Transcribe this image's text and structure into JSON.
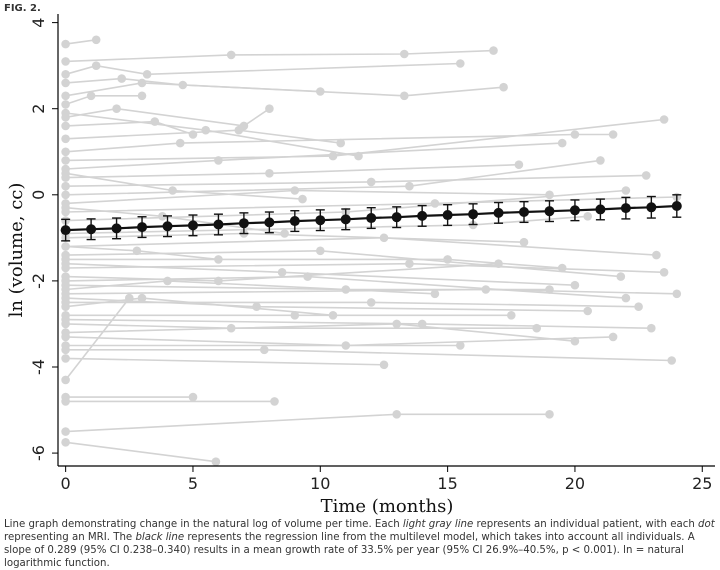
{
  "figure_label": "FIG. 2.",
  "chart_data": {
    "type": "line",
    "title": "",
    "xlabel": "Time (months)",
    "ylabel": "ln (volume, cc)",
    "xlim": [
      -0.3,
      25.5
    ],
    "ylim": [
      -6.3,
      4.2
    ],
    "xticks": [
      0,
      5,
      10,
      15,
      20,
      25
    ],
    "yticks": [
      4,
      2,
      0,
      -2,
      -4,
      -6
    ],
    "xtick_labels": [
      "0",
      "5",
      "10",
      "15",
      "20",
      "25"
    ],
    "ytick_labels": [
      "4",
      "2",
      "0",
      "-2",
      "-4",
      "-6"
    ],
    "grid": false,
    "legend": "none",
    "colors": {
      "individual": "#d3d3d3",
      "regression": "#111111"
    },
    "regression_series": {
      "x": [
        0,
        1,
        2,
        3,
        4,
        5,
        6,
        7,
        8,
        9,
        10,
        11,
        12,
        13,
        14,
        15,
        16,
        17,
        18,
        19,
        20,
        21,
        22,
        23,
        24
      ],
      "y": [
        -0.82,
        -0.8,
        -0.78,
        -0.75,
        -0.73,
        -0.71,
        -0.69,
        -0.66,
        -0.64,
        -0.61,
        -0.59,
        -0.57,
        -0.54,
        -0.52,
        -0.49,
        -0.47,
        -0.45,
        -0.42,
        -0.4,
        -0.38,
        -0.36,
        -0.34,
        -0.31,
        -0.29,
        -0.26
      ],
      "ci_half_width": [
        0.25,
        0.24,
        0.24,
        0.24,
        0.24,
        0.24,
        0.24,
        0.24,
        0.24,
        0.24,
        0.24,
        0.24,
        0.24,
        0.24,
        0.24,
        0.24,
        0.24,
        0.24,
        0.24,
        0.24,
        0.24,
        0.24,
        0.25,
        0.25,
        0.26
      ]
    },
    "individual_series": [
      {
        "x": [
          0,
          1.2
        ],
        "y": [
          3.5,
          3.6
        ]
      },
      {
        "x": [
          0,
          6.5,
          13.3,
          16.8
        ],
        "y": [
          3.1,
          3.25,
          3.27,
          3.35
        ]
      },
      {
        "x": [
          0,
          1.2,
          3.2,
          15.5
        ],
        "y": [
          2.8,
          3.0,
          2.8,
          3.05
        ]
      },
      {
        "x": [
          0,
          2.2,
          4.6,
          10.0
        ],
        "y": [
          2.6,
          2.7,
          2.55,
          2.4
        ]
      },
      {
        "x": [
          0,
          3.0,
          13.3,
          17.2
        ],
        "y": [
          2.3,
          2.6,
          2.3,
          2.5
        ]
      },
      {
        "x": [
          0,
          1.0,
          3.0
        ],
        "y": [
          2.1,
          2.3,
          2.3
        ]
      },
      {
        "x": [
          0,
          2.0,
          7.0,
          8.0
        ],
        "y": [
          1.8,
          2.0,
          1.6,
          2.0
        ]
      },
      {
        "x": [
          0,
          3.5,
          5.0
        ],
        "y": [
          1.6,
          1.7,
          1.4
        ]
      },
      {
        "x": [
          0,
          6.8,
          10.8
        ],
        "y": [
          1.3,
          1.5,
          1.2
        ]
      },
      {
        "x": [
          0,
          4.5,
          20.0,
          21.5
        ],
        "y": [
          1.0,
          1.2,
          1.4,
          1.4
        ]
      },
      {
        "x": [
          0,
          10.5,
          23.5
        ],
        "y": [
          0.8,
          0.9,
          1.75
        ]
      },
      {
        "x": [
          0,
          6.0,
          19.5
        ],
        "y": [
          0.6,
          0.8,
          1.2
        ]
      },
      {
        "x": [
          0,
          8.0,
          17.8
        ],
        "y": [
          0.4,
          0.5,
          0.7
        ]
      },
      {
        "x": [
          0,
          12.0,
          22.8
        ],
        "y": [
          0.2,
          0.3,
          0.45
        ]
      },
      {
        "x": [
          0,
          13.5,
          21.0
        ],
        "y": [
          0.0,
          0.2,
          0.8
        ]
      },
      {
        "x": [
          0,
          9.0,
          19.0
        ],
        "y": [
          -0.2,
          0.1,
          0.0
        ]
      },
      {
        "x": [
          0,
          14.5,
          24.0
        ],
        "y": [
          -0.4,
          -0.2,
          -0.05
        ]
      },
      {
        "x": [
          0,
          11.0,
          22.0
        ],
        "y": [
          -0.6,
          -0.4,
          0.1
        ]
      },
      {
        "x": [
          0,
          16.0,
          20.5
        ],
        "y": [
          -0.9,
          -0.7,
          -0.5
        ]
      },
      {
        "x": [
          0,
          7.0,
          18.0
        ],
        "y": [
          -1.0,
          -0.9,
          -1.1
        ]
      },
      {
        "x": [
          0,
          12.5,
          23.2
        ],
        "y": [
          -1.2,
          -1.0,
          -1.4
        ]
      },
      {
        "x": [
          0,
          10.0,
          21.8
        ],
        "y": [
          -1.4,
          -1.3,
          -1.9
        ]
      },
      {
        "x": [
          0,
          15.0,
          19.5
        ],
        "y": [
          -1.5,
          -1.5,
          -1.7
        ]
      },
      {
        "x": [
          0,
          8.5,
          20.0
        ],
        "y": [
          -1.6,
          -1.8,
          -2.1
        ]
      },
      {
        "x": [
          0,
          13.5,
          23.5
        ],
        "y": [
          -1.7,
          -1.6,
          -1.8
        ]
      },
      {
        "x": [
          0,
          6.0,
          17.0
        ],
        "y": [
          -1.9,
          -2.0,
          -1.6
        ]
      },
      {
        "x": [
          0,
          9.5,
          22.0
        ],
        "y": [
          -2.0,
          -1.9,
          -2.4
        ]
      },
      {
        "x": [
          0,
          11.0,
          19.0
        ],
        "y": [
          -2.1,
          -2.2,
          -2.2
        ]
      },
      {
        "x": [
          0,
          4.0,
          14.5
        ],
        "y": [
          -2.2,
          -2.0,
          -2.3
        ]
      },
      {
        "x": [
          0,
          16.5,
          24.0
        ],
        "y": [
          -2.3,
          -2.2,
          -2.3
        ]
      },
      {
        "x": [
          0,
          7.5,
          20.5
        ],
        "y": [
          -2.4,
          -2.6,
          -2.7
        ]
      },
      {
        "x": [
          0,
          12.0,
          22.5
        ],
        "y": [
          -2.5,
          -2.5,
          -2.6
        ]
      },
      {
        "x": [
          0,
          3.0,
          10.5
        ],
        "y": [
          -2.6,
          -2.4,
          -2.8
        ]
      },
      {
        "x": [
          0,
          9.0,
          17.5
        ],
        "y": [
          -2.8,
          -2.8,
          -2.8
        ]
      },
      {
        "x": [
          0,
          14.0,
          23.0
        ],
        "y": [
          -2.9,
          -3.0,
          -3.1
        ]
      },
      {
        "x": [
          0,
          6.5,
          18.5
        ],
        "y": [
          -3.0,
          -3.1,
          -3.1
        ]
      },
      {
        "x": [
          0,
          13.0,
          20.0
        ],
        "y": [
          -3.2,
          -3.0,
          -3.4
        ]
      },
      {
        "x": [
          0,
          11.0,
          21.5
        ],
        "y": [
          -3.3,
          -3.5,
          -3.3
        ]
      },
      {
        "x": [
          0,
          15.5
        ],
        "y": [
          -3.5,
          -3.5
        ]
      },
      {
        "x": [
          0,
          7.8,
          23.8
        ],
        "y": [
          -3.6,
          -3.6,
          -3.85
        ]
      },
      {
        "x": [
          0,
          12.5
        ],
        "y": [
          -3.8,
          -3.95
        ]
      },
      {
        "x": [
          0,
          5.0
        ],
        "y": [
          -4.7,
          -4.7
        ]
      },
      {
        "x": [
          0,
          8.2
        ],
        "y": [
          -4.8,
          -4.8
        ]
      },
      {
        "x": [
          0,
          2.5
        ],
        "y": [
          -4.3,
          -2.4
        ]
      },
      {
        "x": [
          0,
          13.0,
          19.0
        ],
        "y": [
          -5.5,
          -5.1,
          -5.1
        ]
      },
      {
        "x": [
          0,
          5.9
        ],
        "y": [
          -5.75,
          -6.2
        ]
      },
      {
        "x": [
          0,
          4.2,
          9.3
        ],
        "y": [
          0.5,
          0.1,
          -0.1
        ]
      },
      {
        "x": [
          0,
          5.5,
          11.5
        ],
        "y": [
          1.9,
          1.5,
          0.9
        ]
      },
      {
        "x": [
          0,
          2.8,
          6.0
        ],
        "y": [
          -1.2,
          -1.3,
          -1.5
        ]
      },
      {
        "x": [
          0,
          3.8,
          8.6
        ],
        "y": [
          -0.3,
          -0.5,
          -0.9
        ]
      }
    ]
  },
  "caption": {
    "part1": "Line graph demonstrating change in the natural log of volume per time. Each ",
    "em1": "light gray line",
    "part2": " represents an individual patient, with each ",
    "em2": "dot",
    "part3": " representing an MRI. The ",
    "em3": "black line",
    "part4": " represents the regression line from the multilevel model, which takes into account all individuals. A slope of 0.289 (95% CI 0.238–0.340) results in a mean growth rate of 33.5% per year (95% CI 26.9%–40.5%, p < 0.001). ln = natural logarithmic function."
  }
}
